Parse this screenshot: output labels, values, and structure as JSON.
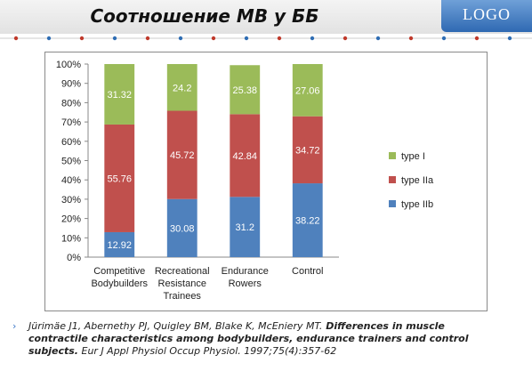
{
  "slide": {
    "title": "Соотношение МВ у ББ",
    "logo": "LOGO",
    "accent_color": "#3c78c8",
    "dot_colors": [
      "#c0392b",
      "#2e6db4"
    ]
  },
  "citation": {
    "bullet": "›",
    "line1_authors": "Jürimäe J1, Abernethy PJ, Quigley BM, Blake K, McEniery MT.",
    "line1_title": " Differences in muscle",
    "line2_title": "contractile characteristics among bodybuilders, endurance trainers and control",
    "line3_title": "subjects.",
    "line3_journal": " Eur J Appl Physiol Occup Physiol. 1997;75(4):357-62"
  },
  "chart_data": {
    "type": "bar",
    "stacked": "percent",
    "categories": [
      [
        "Competitive",
        "Bodybuilders"
      ],
      [
        "Recreational",
        "Resistance",
        "Trainees"
      ],
      [
        "Endurance",
        "Rowers"
      ],
      [
        "Control"
      ]
    ],
    "series": [
      {
        "name": "type IIb",
        "color": "#4f81bd",
        "values": [
          12.92,
          30.08,
          31.2,
          38.22
        ]
      },
      {
        "name": "type IIa",
        "color": "#c0504d",
        "values": [
          55.76,
          45.72,
          42.84,
          34.72
        ]
      },
      {
        "name": "type I",
        "color": "#9bbb59",
        "values": [
          31.32,
          24.2,
          25.38,
          27.06
        ]
      }
    ],
    "data_labels": [
      [
        "12.92",
        "30.08",
        "31.2",
        "38.22"
      ],
      [
        "55.76",
        "45.72",
        "42.84",
        "34.72"
      ],
      [
        "31.32",
        "24.2",
        "25.38",
        "27.06"
      ]
    ],
    "y_ticks": [
      "0%",
      "10%",
      "20%",
      "30%",
      "40%",
      "50%",
      "60%",
      "70%",
      "80%",
      "90%",
      "100%"
    ],
    "ylim": [
      0,
      100
    ],
    "grid": false,
    "legend_position": "right",
    "legend_order": [
      "type I",
      "type IIa",
      "type IIb"
    ]
  }
}
